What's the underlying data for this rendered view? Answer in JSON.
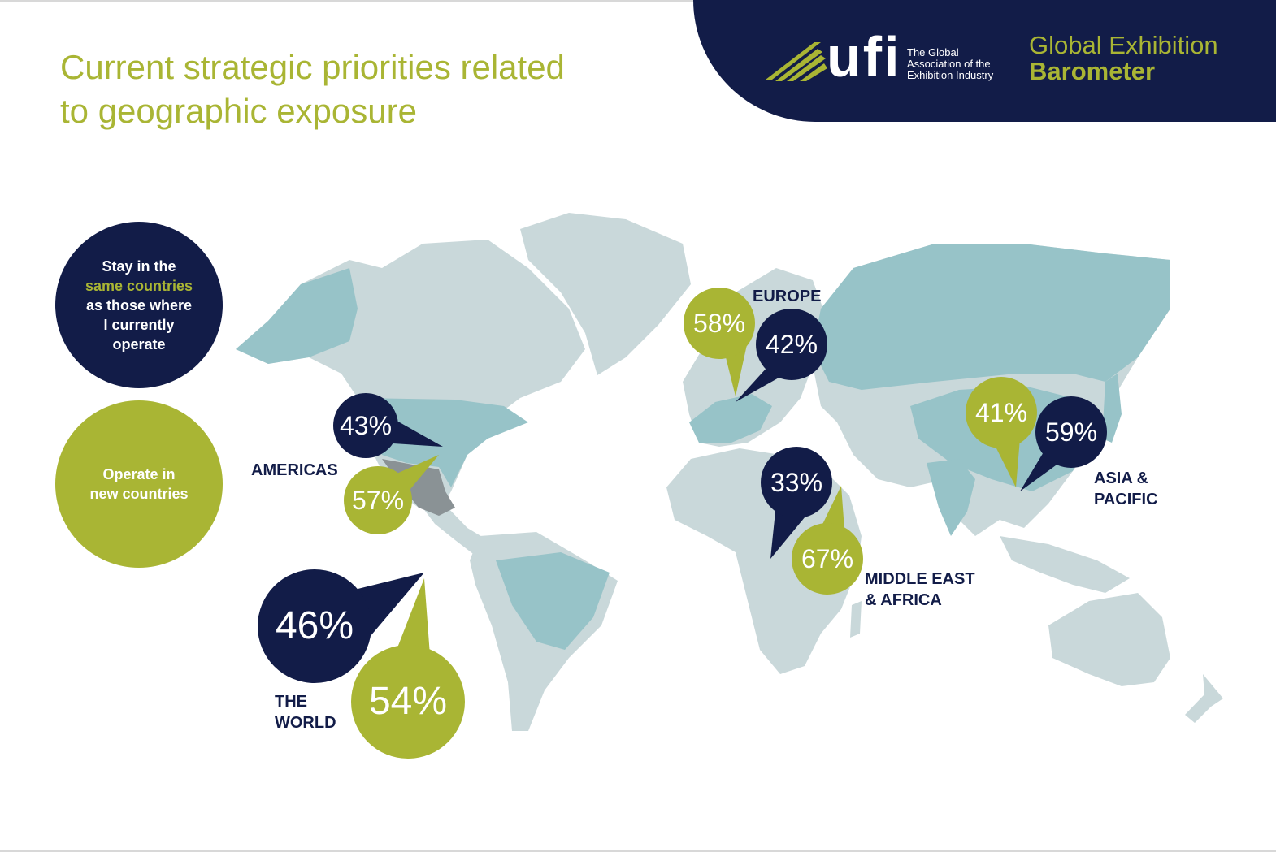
{
  "title": {
    "line1": "Current strategic priorities related",
    "line2": "to geographic exposure"
  },
  "header": {
    "logo_word": "ufi",
    "tagline": [
      "The Global",
      "Association of the",
      "Exhibition Industry"
    ],
    "product_line1": "Global Exhibition",
    "product_line2": "Barometer"
  },
  "legend": {
    "stay": {
      "line1": "Stay in the",
      "highlight": "same countries",
      "line3": "as those where",
      "line4": "I currently",
      "line5": "operate"
    },
    "new": {
      "line1": "Operate in",
      "line2": "new countries"
    }
  },
  "colors": {
    "navy": "#121c48",
    "olive": "#a9b534",
    "map_land": "#c9d8da",
    "map_highlight": "#97c3c8"
  },
  "regions": {
    "americas": {
      "label": "AMERICAS",
      "stay": "43%",
      "new": "57%"
    },
    "europe": {
      "label": "EUROPE",
      "stay": "42%",
      "new": "58%"
    },
    "mea": {
      "label_line1": "MIDDLE EAST",
      "label_line2": "& AFRICA",
      "stay": "33%",
      "new": "67%"
    },
    "apac": {
      "label_line1": "ASIA &",
      "label_line2": "PACIFIC",
      "stay": "59%",
      "new": "41%"
    },
    "world": {
      "label_line1": "THE",
      "label_line2": "WORLD",
      "stay": "46%",
      "new": "54%"
    }
  }
}
